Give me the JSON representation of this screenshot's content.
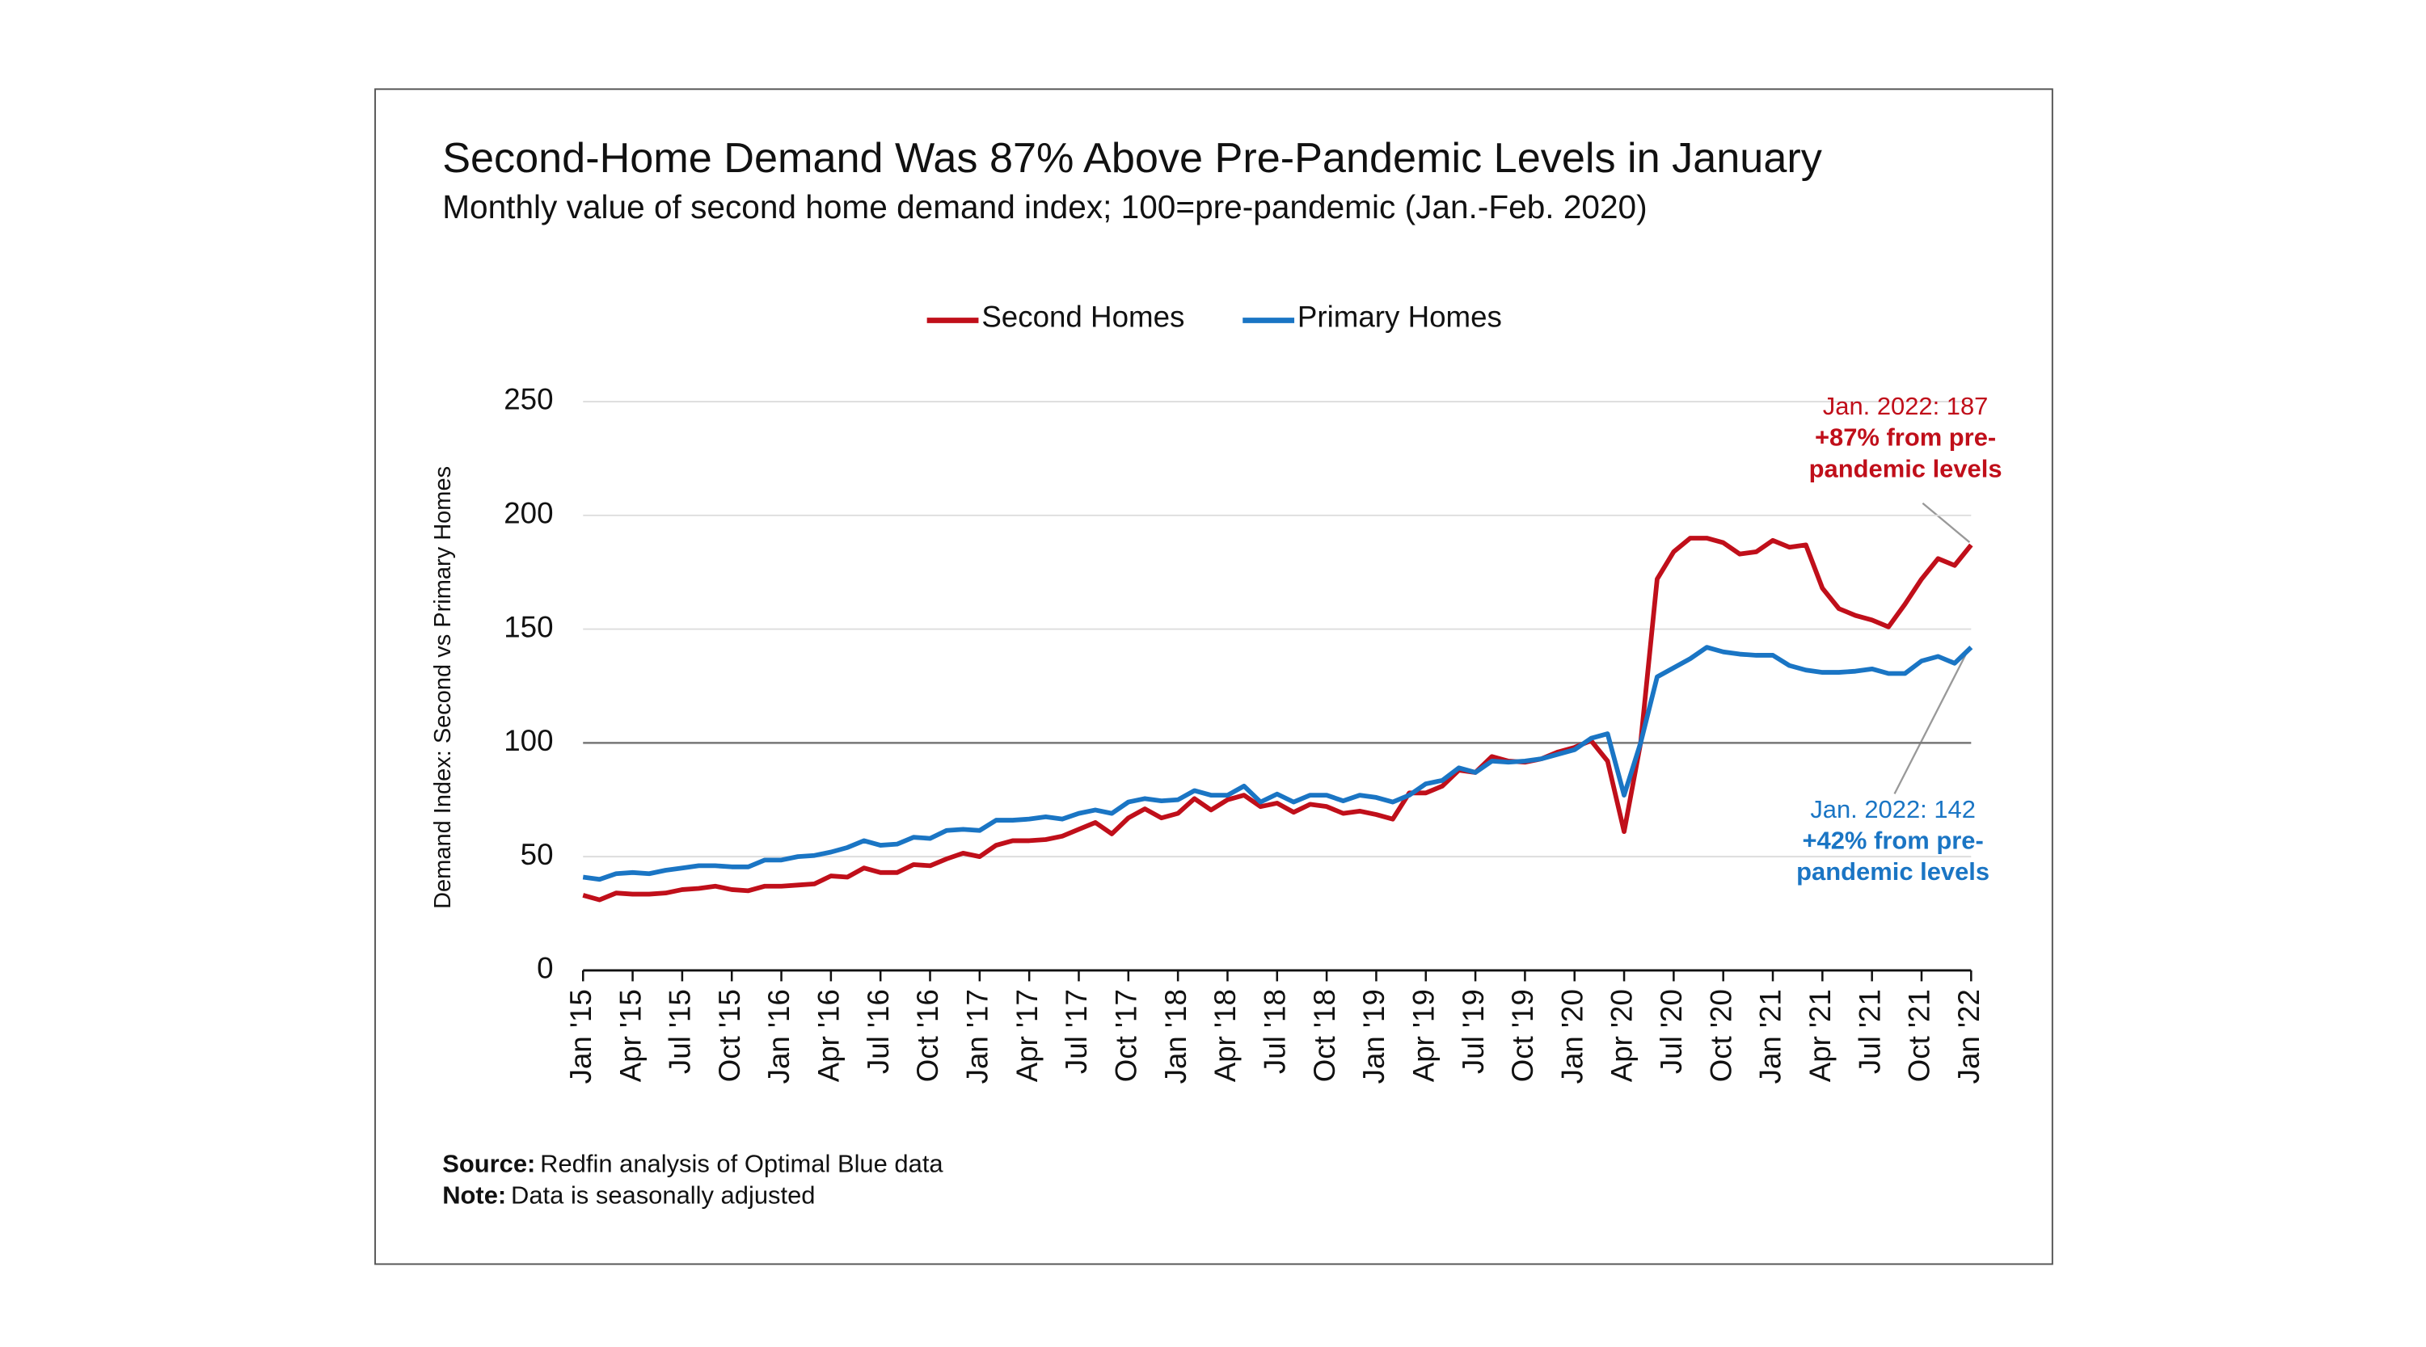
{
  "chart_data": {
    "type": "line",
    "title": "Second-Home Demand Was 87% Above Pre-Pandemic Levels in January",
    "subtitle": "Monthly value of second home demand index; 100=pre-pandemic (Jan.-Feb. 2020)",
    "y_label": "Demand Index: Second vs Primary Homes",
    "categories": [
      "Jan '15",
      null,
      null,
      "Apr '15",
      null,
      null,
      "Jul '15",
      null,
      null,
      "Oct '15",
      null,
      null,
      "Jan '16",
      null,
      null,
      "Apr '16",
      null,
      null,
      "Jul '16",
      null,
      null,
      "Oct '16",
      null,
      null,
      "Jan '17",
      null,
      null,
      "Apr '17",
      null,
      null,
      "Jul '17",
      null,
      null,
      "Oct '17",
      null,
      null,
      "Jan '18",
      null,
      null,
      "Apr '18",
      null,
      null,
      "Jul '18",
      null,
      null,
      "Oct '18",
      null,
      null,
      "Jan '19",
      null,
      null,
      "Apr '19",
      null,
      null,
      "Jul '19",
      null,
      null,
      "Oct '19",
      null,
      null,
      "Jan '20",
      null,
      null,
      "Apr '20",
      null,
      null,
      "Jul '20",
      null,
      null,
      "Oct '20",
      null,
      null,
      "Jan '21",
      null,
      null,
      "Apr '21",
      null,
      null,
      "Jul '21",
      null,
      null,
      "Oct '21",
      null,
      null,
      "Jan '22"
    ],
    "series": [
      {
        "name": "Second Homes",
        "color": "#c00f1a",
        "values": [
          33,
          31,
          34,
          33.5,
          33.5,
          34,
          35.5,
          36,
          37,
          35.5,
          35,
          37,
          37,
          37.5,
          38,
          41.5,
          41,
          45,
          43,
          43,
          46.5,
          46,
          49,
          51.5,
          50,
          55,
          57,
          57,
          57.5,
          59,
          62,
          65,
          60,
          67,
          71,
          67,
          69,
          75.5,
          70.5,
          75,
          77,
          72,
          73.5,
          69.5,
          73,
          72,
          69,
          70,
          68.5,
          66.5,
          78,
          78,
          81,
          88,
          87,
          94,
          92,
          91.5,
          93,
          96,
          98,
          101,
          92,
          61,
          100,
          172,
          184,
          190,
          190,
          188,
          183,
          184,
          189,
          186,
          187,
          168,
          159,
          156,
          154,
          151,
          161,
          172,
          181,
          178,
          187
        ]
      },
      {
        "name": "Primary Homes",
        "color": "#1a75c4",
        "values": [
          41,
          40,
          42.5,
          43,
          42.5,
          44,
          45,
          46,
          46,
          45.5,
          45.5,
          48.5,
          48.5,
          50,
          50.5,
          52,
          54,
          57,
          55,
          55.5,
          58.5,
          58,
          61.5,
          62,
          61.5,
          66,
          66,
          66.5,
          67.5,
          66.5,
          69,
          70.5,
          69,
          74,
          75.5,
          74.5,
          75,
          79,
          77,
          77,
          81,
          74,
          77.5,
          74,
          77,
          77,
          74.5,
          77,
          76,
          74,
          77,
          82,
          83.5,
          89,
          87,
          92,
          91.5,
          92,
          93,
          95,
          97,
          102,
          104,
          77,
          100,
          129,
          133,
          137,
          142,
          140,
          139,
          138.5,
          138.5,
          134,
          132,
          131,
          131,
          131.5,
          132.5,
          130.5,
          130.5,
          136,
          138,
          135,
          142
        ]
      }
    ],
    "ylim": [
      0,
      250
    ],
    "yticks": [
      0,
      50,
      100,
      150,
      200,
      250
    ],
    "reference_line": 100,
    "grid": true,
    "legend": "top",
    "annotations": [
      {
        "lines": [
          "Jan. 2022: 187",
          "+87% from pre-",
          "pandemic levels"
        ],
        "color": "#c00f1a"
      },
      {
        "lines": [
          "Jan. 2022: 142",
          "+42% from pre-",
          "pandemic levels"
        ],
        "color": "#1a75c4"
      }
    ],
    "source": {
      "label": "Source:",
      "text": "Redfin analysis of Optimal Blue data"
    },
    "note": {
      "label": "Note:",
      "text": "Data is seasonally adjusted"
    }
  }
}
